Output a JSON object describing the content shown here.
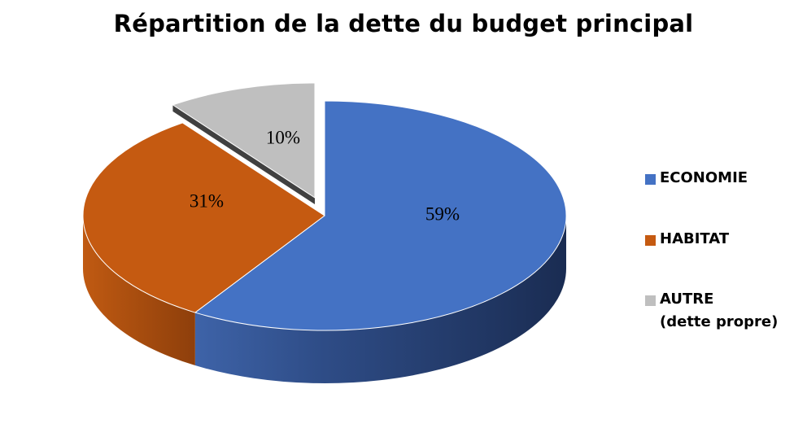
{
  "chart_data": {
    "type": "pie",
    "title": "Répartition de la dette du budget principal",
    "categories": [
      "ECONOMIE",
      "HABITAT",
      "AUTRE (dette propre)"
    ],
    "values": [
      59,
      31,
      10
    ],
    "data_labels": [
      "59%",
      "31%",
      "10%"
    ],
    "colors": [
      "#4472c4",
      "#c55a11",
      "#bfbfbf"
    ],
    "style": "3d-pie",
    "exploded_slice": "AUTRE (dette propre)",
    "legend": {
      "position": "right",
      "entries": [
        {
          "lines": [
            "ECONOMIE"
          ],
          "color": "#4472c4"
        },
        {
          "lines": [
            "HABITAT"
          ],
          "color": "#c55a11"
        },
        {
          "lines": [
            "AUTRE",
            "(dette propre)"
          ],
          "color": "#bfbfbf"
        }
      ]
    }
  }
}
